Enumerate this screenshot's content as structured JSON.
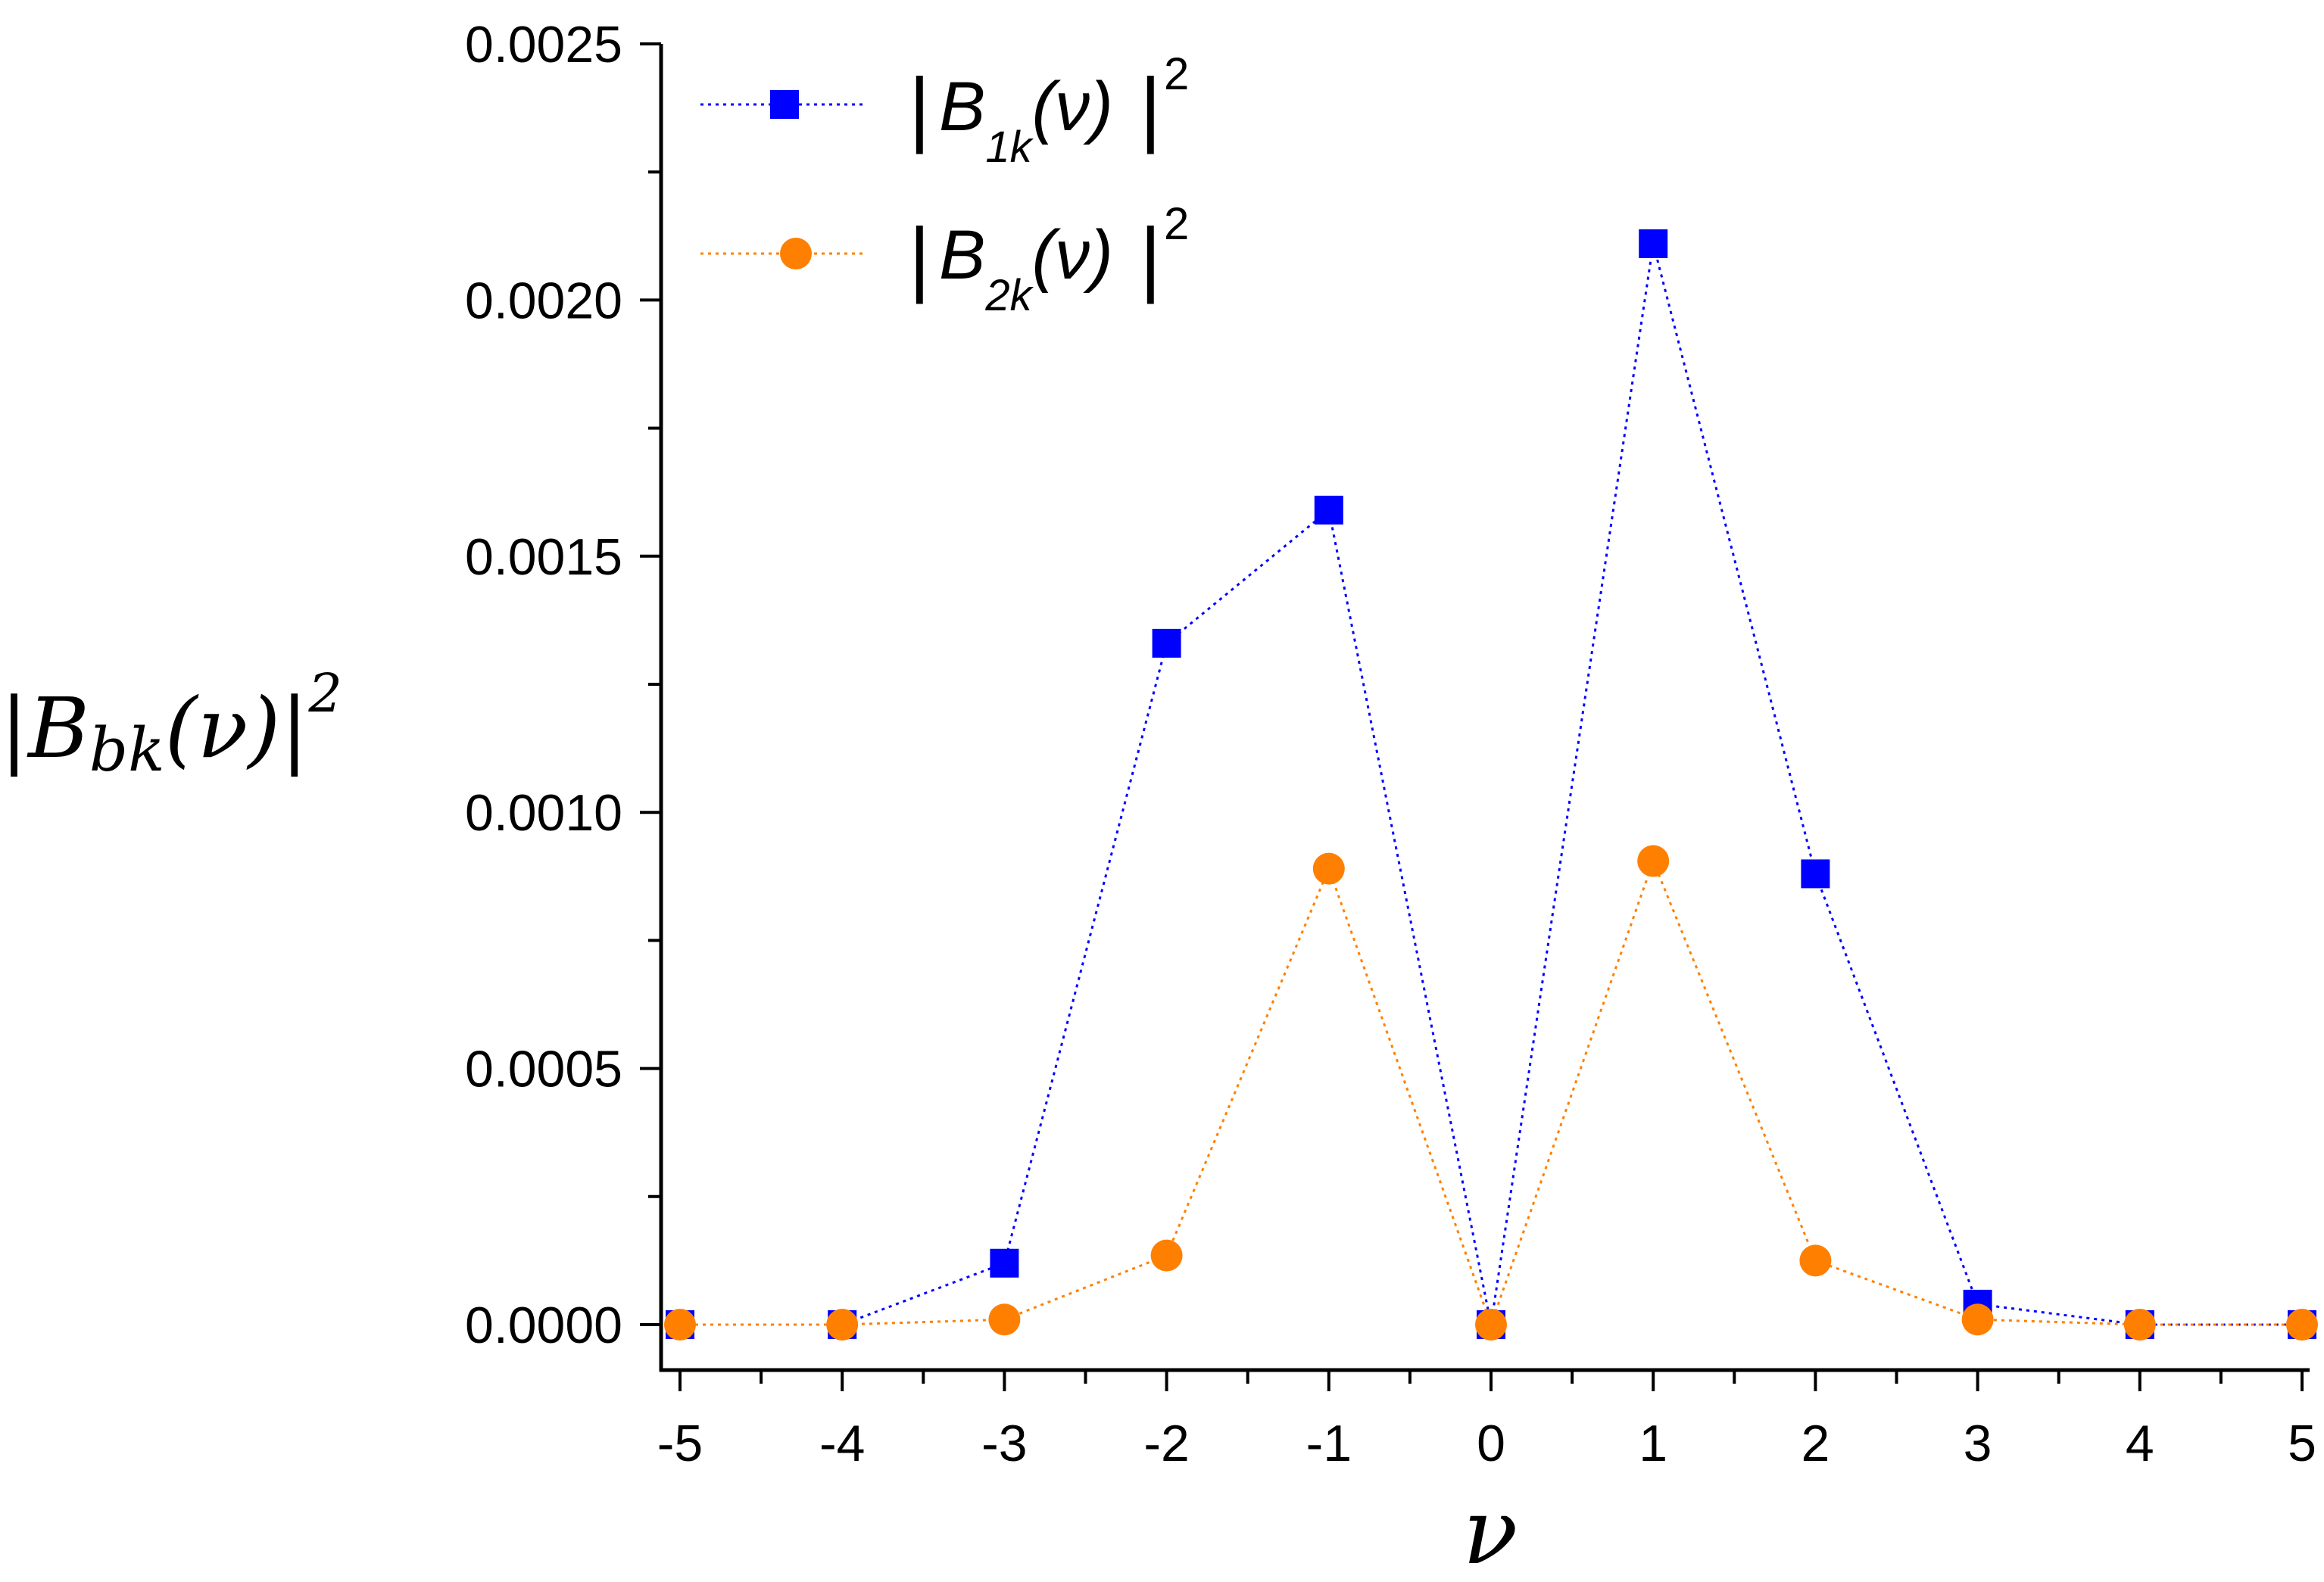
{
  "chart_data": {
    "type": "line",
    "x": [
      -5,
      -4,
      -3,
      -2,
      -1,
      0,
      1,
      2,
      3,
      4,
      5
    ],
    "series": [
      {
        "name": "|B1k(ν)|²",
        "legend": {
          "bar_open": "|",
          "base": "B",
          "sub": "1k",
          "rest": "(ν)",
          "bar_close": "|",
          "sup": "2"
        },
        "color": "#0000ff",
        "marker": "square",
        "values": [
          0.0,
          0.0,
          0.00012,
          0.00133,
          0.00159,
          0.0,
          0.00211,
          0.00088,
          4e-05,
          0.0,
          0.0
        ]
      },
      {
        "name": "|B2k(ν)|²",
        "legend": {
          "bar_open": "|",
          "base": "B",
          "sub": "2k",
          "rest": "(ν)",
          "bar_close": "|",
          "sup": "2"
        },
        "color": "#ff8000",
        "marker": "circle",
        "values": [
          0.0,
          0.0,
          1e-05,
          0.000135,
          0.00089,
          0.0,
          0.000905,
          0.000125,
          1e-05,
          0.0,
          0.0
        ]
      }
    ],
    "xlabel": "ν",
    "ylabel": {
      "bar_open": "|",
      "base": "B",
      "sub": "bk",
      "rest": "(ν)",
      "bar_close": "|",
      "sup": "2"
    },
    "xlim": [
      -5,
      5
    ],
    "ylim": [
      0,
      0.0025
    ],
    "x_ticks": [
      "-5",
      "-4",
      "-3",
      "-2",
      "-1",
      "0",
      "1",
      "2",
      "3",
      "4",
      "5"
    ],
    "y_ticks": [
      "0.0000",
      "0.0005",
      "0.0010",
      "0.0015",
      "0.0020",
      "0.0025"
    ],
    "y_tick_values": [
      0,
      0.0005,
      0.001,
      0.0015,
      0.002,
      0.0025
    ],
    "grid": false,
    "legend_position": "top-left"
  }
}
